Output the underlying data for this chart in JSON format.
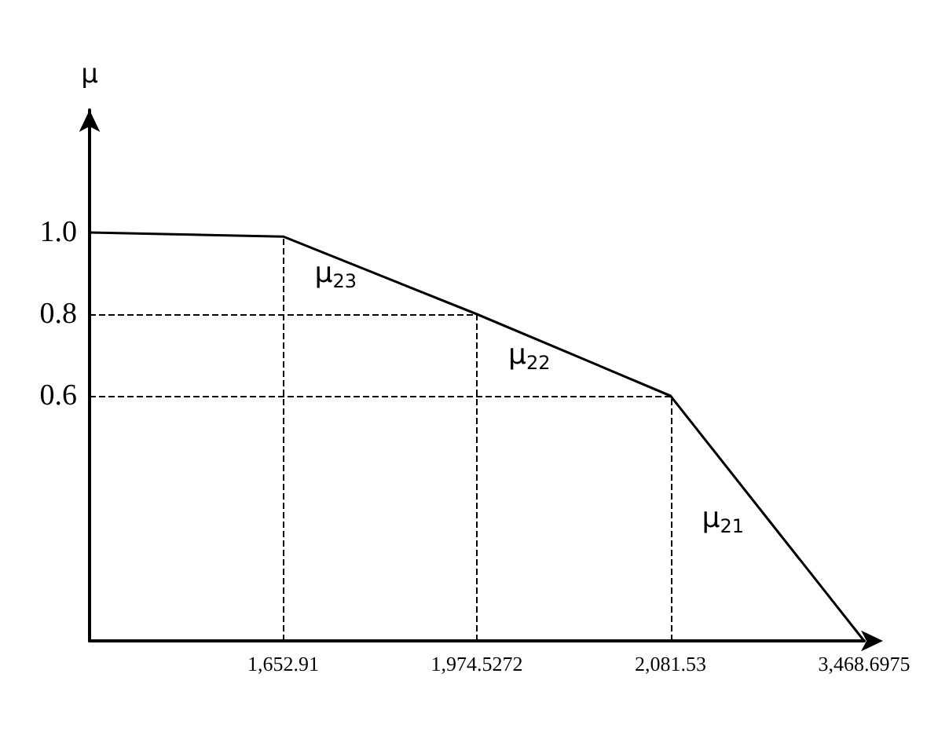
{
  "chart_data": {
    "type": "line",
    "ylabel": "μ",
    "categories": [
      null,
      "1,652.91",
      "1,974.5272",
      "2,081.53",
      "3,468.6975"
    ],
    "series": [
      {
        "color": "#000000",
        "values": [
          1.0,
          0.99,
          0.8,
          0.6,
          0
        ]
      }
    ],
    "ylim": [
      0,
      1.3
    ],
    "yticks": [
      {
        "value": 0,
        "label": null
      },
      {
        "value": 0.6,
        "label": "0.6"
      },
      {
        "value": 0.8,
        "label": "0.8"
      },
      {
        "value": 1.0,
        "label": "1.0"
      }
    ],
    "ref_lines": [
      {
        "axis": "x",
        "value": "1,652.91",
        "line_style": "dashed"
      },
      {
        "axis": "x",
        "value": "1,974.5272",
        "line_style": "dashed"
      },
      {
        "axis": "x",
        "value": "2,081.53",
        "line_style": "dashed"
      },
      {
        "axis": "y",
        "value": 0.8,
        "line_style": "dashed"
      },
      {
        "axis": "y",
        "value": 0.6,
        "line_style": "dashed"
      }
    ],
    "annotations": [
      {
        "text": "μ$_{23}$",
        "x": "1,652.91",
        "y": 0.9
      },
      {
        "text": "μ$_{22}$",
        "x": "1,974.5272",
        "y": 0.7
      },
      {
        "text": "μ$_{21}$",
        "x": "2,081.53",
        "y": 0.3
      }
    ],
    "grid": false,
    "marker": "none",
    "line_style": "solid"
  }
}
